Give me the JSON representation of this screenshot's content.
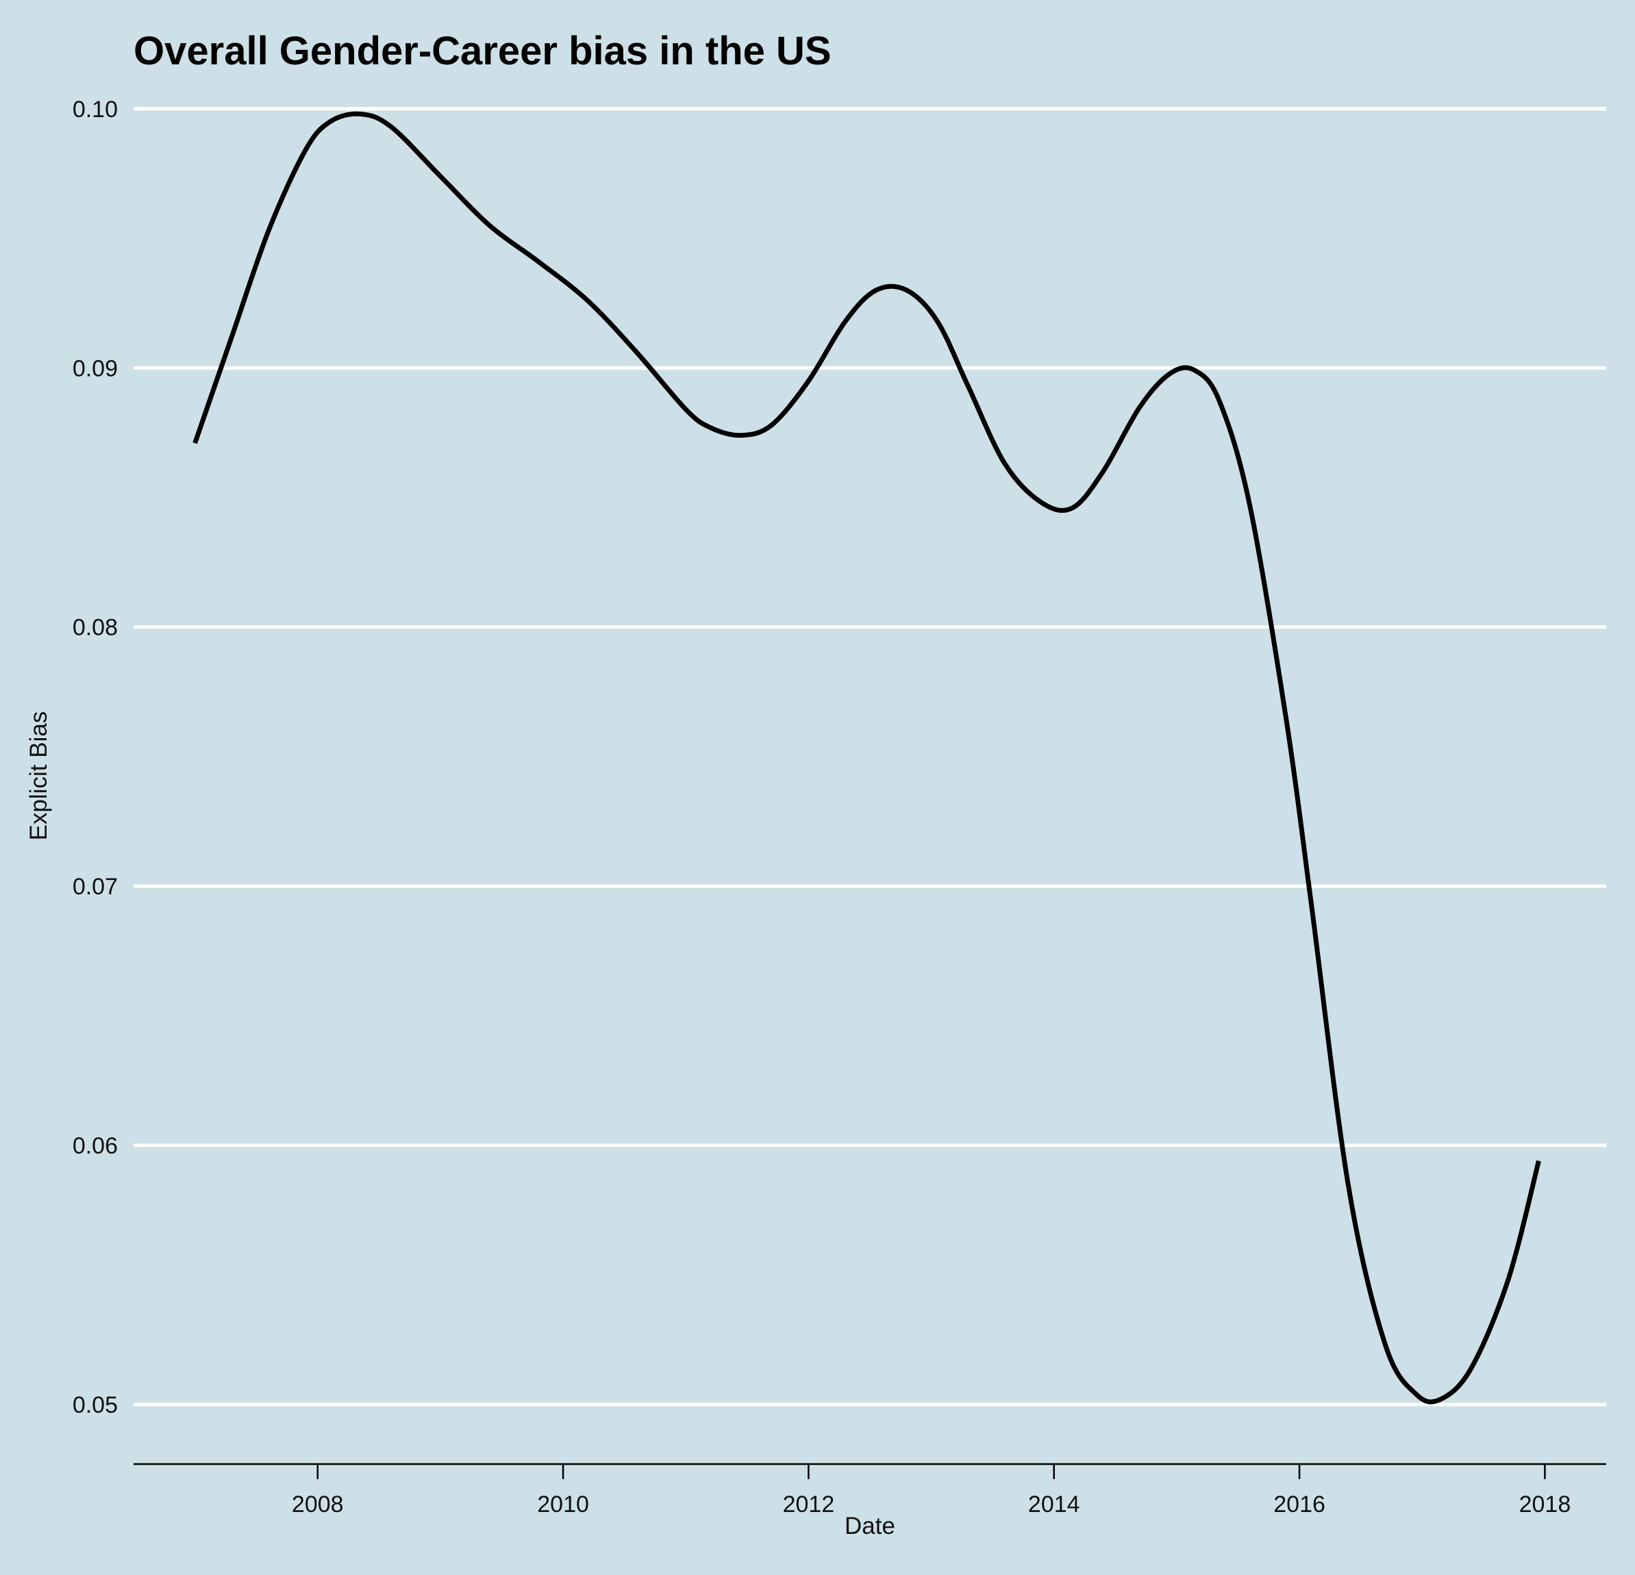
{
  "chart_data": {
    "type": "line",
    "title": "Overall Gender-Career bias in the US",
    "xlabel": "Date",
    "ylabel": "Explicit Bias",
    "xlim": [
      2006.5,
      2018.5
    ],
    "ylim": [
      0.0477,
      0.1005
    ],
    "x_ticks": [
      2008,
      2010,
      2012,
      2014,
      2016,
      2018
    ],
    "y_ticks": [
      0.05,
      0.06,
      0.07,
      0.08,
      0.09,
      0.1
    ],
    "y_tick_labels": [
      "0.05",
      "0.06",
      "0.07",
      "0.08",
      "0.09",
      "0.10"
    ],
    "grid": {
      "horizontal": true,
      "vertical": false,
      "color": "#ffffff"
    },
    "legend": "none",
    "colors": {
      "background": "#cde0e7",
      "line": "#000000"
    },
    "series": [
      {
        "x": [
          2007.0,
          2007.3,
          2007.6,
          2007.9,
          2008.1,
          2008.35,
          2008.6,
          2009.0,
          2009.4,
          2009.8,
          2010.2,
          2010.6,
          2011.0,
          2011.2,
          2011.45,
          2011.7,
          2012.0,
          2012.3,
          2012.55,
          2012.8,
          2013.05,
          2013.3,
          2013.6,
          2013.9,
          2014.15,
          2014.4,
          2014.7,
          2014.95,
          2015.15,
          2015.35,
          2015.6,
          2015.9,
          2016.1,
          2016.4,
          2016.7,
          2016.95,
          2017.15,
          2017.4,
          2017.7,
          2017.95
        ],
        "values": [
          0.0871,
          0.0912,
          0.0953,
          0.0984,
          0.0995,
          0.0998,
          0.0993,
          0.0974,
          0.0955,
          0.0941,
          0.0926,
          0.0906,
          0.0884,
          0.0877,
          0.0874,
          0.0878,
          0.0895,
          0.0918,
          0.093,
          0.093,
          0.0918,
          0.0893,
          0.0863,
          0.0848,
          0.0846,
          0.086,
          0.0885,
          0.0898,
          0.0899,
          0.0887,
          0.0846,
          0.0762,
          0.0692,
          0.0584,
          0.0523,
          0.0504,
          0.0502,
          0.0514,
          0.0548,
          0.0594
        ]
      }
    ]
  }
}
